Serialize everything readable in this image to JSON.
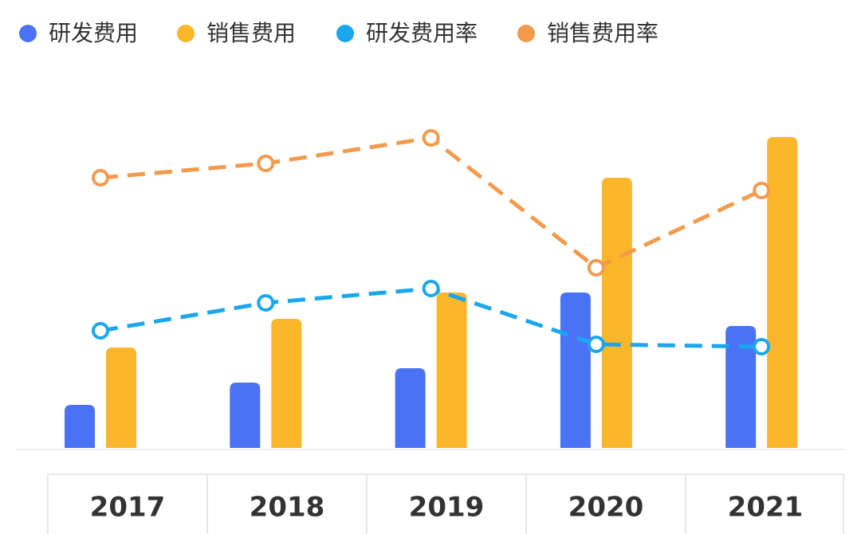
{
  "chart_data": {
    "type": "bar_line",
    "categories": [
      "2017",
      "2018",
      "2019",
      "2020",
      "2021"
    ],
    "series": [
      {
        "name": "研发费用",
        "type": "bar",
        "color": "#4a72f5",
        "values": [
          54,
          82,
          100,
          195,
          153
        ]
      },
      {
        "name": "销售费用",
        "type": "bar",
        "color": "#fbb62a",
        "values": [
          126,
          162,
          195,
          339,
          390
        ]
      },
      {
        "name": "研发费用率",
        "type": "line",
        "axis": "y2",
        "color": "#1aa7ee",
        "values": [
          147,
          182,
          200,
          130,
          127
        ]
      },
      {
        "name": "销售费用率",
        "type": "line",
        "axis": "y2",
        "color": "#f39a4d",
        "values": [
          339,
          357,
          389,
          226,
          323
        ]
      }
    ],
    "ylim": [
      0,
      400
    ],
    "y2lim": [
      0,
      400
    ]
  }
}
